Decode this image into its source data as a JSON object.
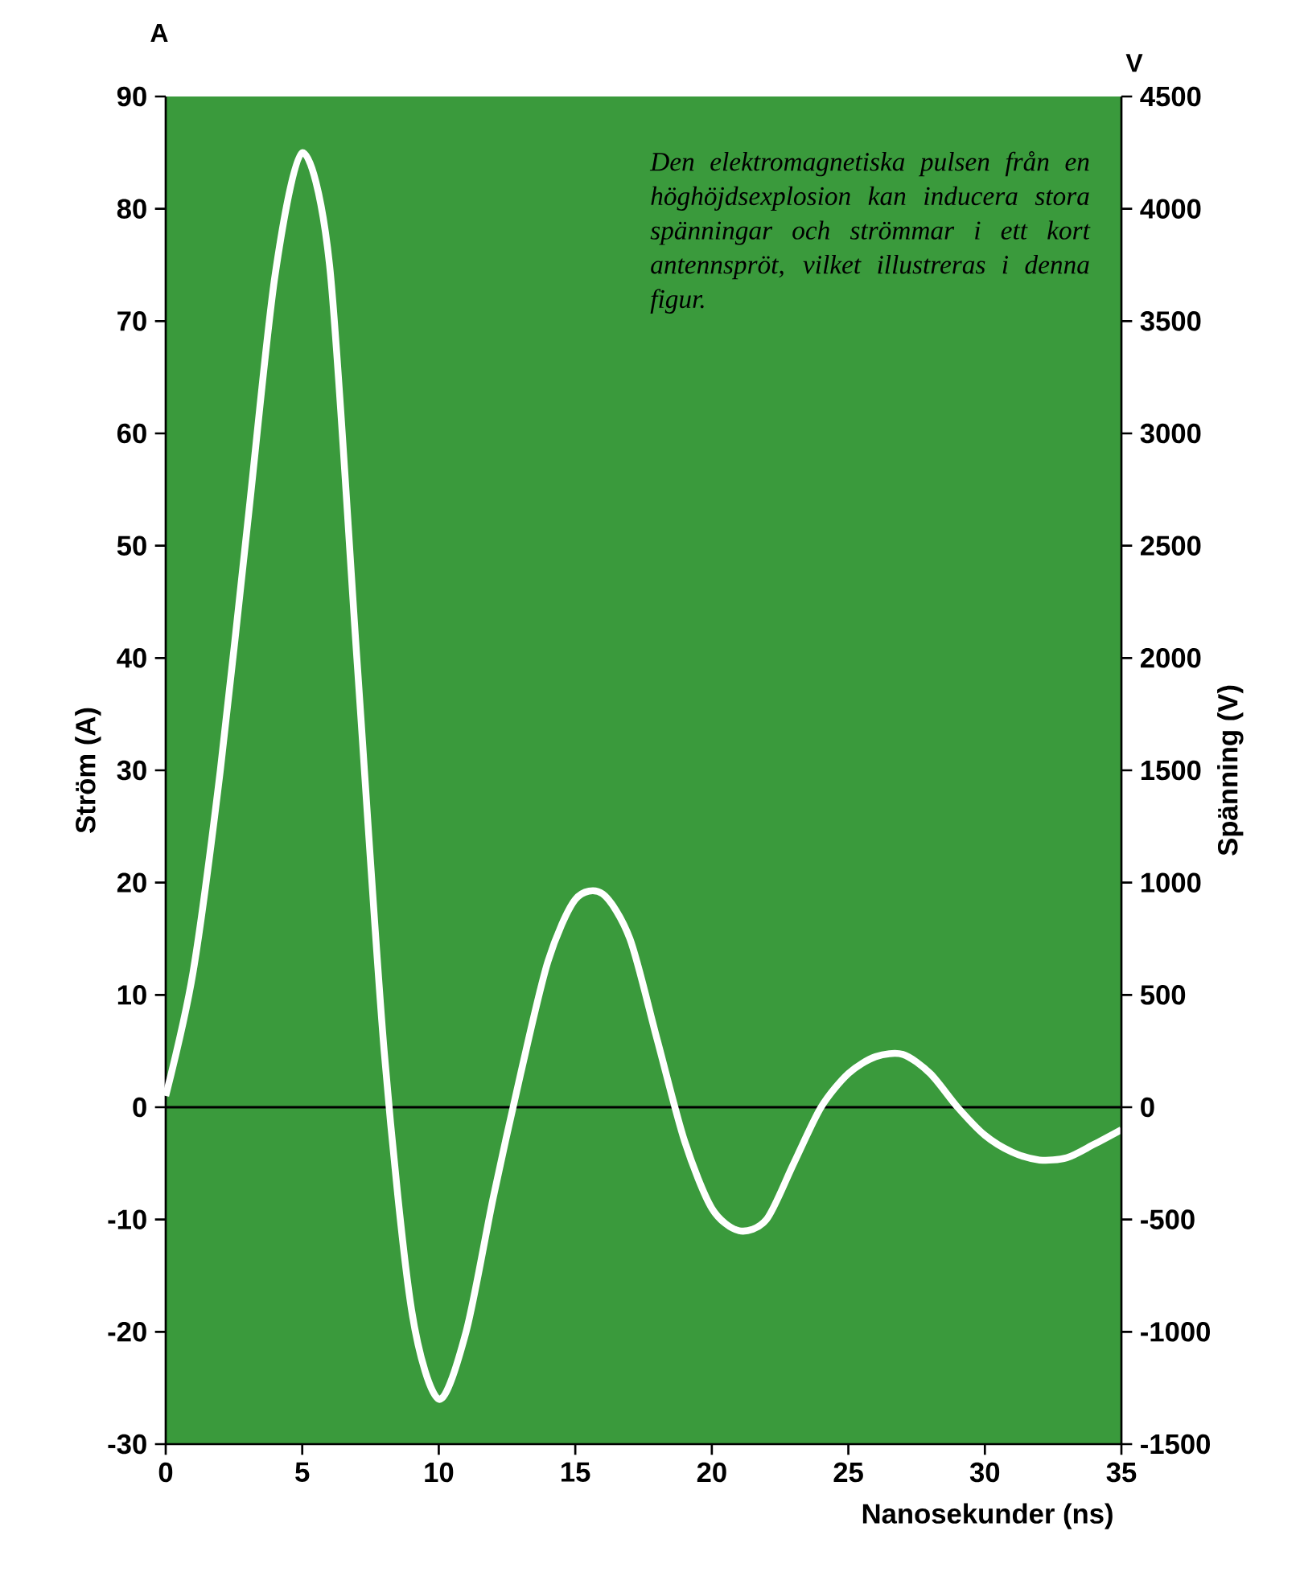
{
  "chart_data": {
    "type": "line",
    "xlabel": "Nanosekunder (ns)",
    "ylabel": "Ström (A)",
    "y2label": "Spänning (V)",
    "annotations": [
      "Den elektromagnetiska pulsen från en höghöjdsexplosion kan inducera stora spänningar och strömmar i ett kort antennspröt, vilket illustreras i denna figur.",
      "A",
      "V"
    ],
    "x": [
      0,
      1,
      2,
      3,
      4,
      5,
      6,
      7,
      8,
      9,
      10,
      11,
      12,
      13,
      14,
      15,
      16,
      17,
      18,
      19,
      20,
      21,
      22,
      23,
      24,
      25,
      26,
      27,
      28,
      29,
      30,
      31,
      32,
      33,
      34,
      35
    ],
    "series": [
      {
        "color": "#ffffff",
        "values": [
          1,
          12,
          30,
          52,
          74,
          85,
          75,
          40,
          5,
          -18,
          -26,
          -20,
          -8,
          3,
          13,
          18.5,
          19,
          15,
          6,
          -3,
          -9,
          -11,
          -10,
          -5,
          0,
          3,
          4.5,
          4.7,
          3,
          0,
          -2.5,
          -4,
          -4.7,
          -4.5,
          -3.3,
          -2
        ]
      }
    ],
    "xlim": [
      0,
      35
    ],
    "xticks": [
      0,
      5,
      10,
      15,
      20,
      25,
      30,
      35
    ],
    "ylim": [
      -30,
      90
    ],
    "yticks": [
      -30,
      -20,
      -10,
      0,
      10,
      20,
      30,
      40,
      50,
      60,
      70,
      80,
      90
    ],
    "y2lim": [
      -1500,
      4500
    ],
    "y2ticks": [
      -1500,
      -1000,
      -500,
      0,
      500,
      1000,
      1500,
      2000,
      2500,
      3000,
      3500,
      4000,
      4500
    ],
    "ref_lines": [
      {
        "axis": "y",
        "value": 0,
        "color": "#000000"
      }
    ]
  }
}
